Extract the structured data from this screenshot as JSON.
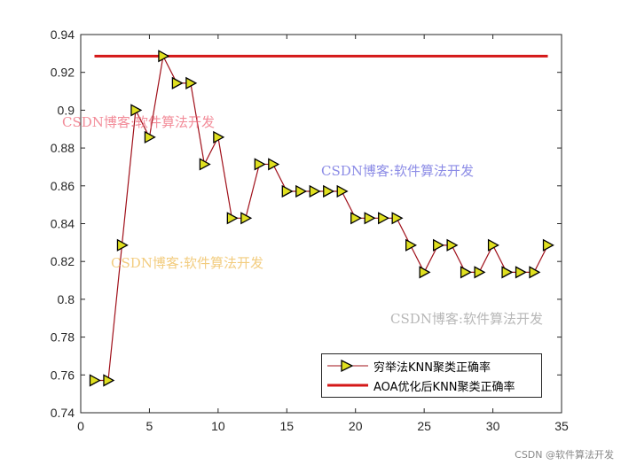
{
  "chart_data": {
    "type": "line",
    "x": [
      1,
      2,
      3,
      4,
      5,
      6,
      7,
      8,
      9,
      10,
      11,
      12,
      13,
      14,
      15,
      16,
      17,
      18,
      19,
      20,
      21,
      22,
      23,
      24,
      25,
      26,
      27,
      28,
      29,
      30,
      31,
      32,
      33,
      34
    ],
    "series": [
      {
        "name": "穷举法KNN聚类正确率",
        "color": "#a0101a",
        "marker": "right-triangle",
        "marker_color": "#e0e020",
        "values": [
          0.7571,
          0.7571,
          0.8286,
          0.9,
          0.8857,
          0.9286,
          0.9143,
          0.9143,
          0.8714,
          0.8857,
          0.8429,
          0.8429,
          0.8714,
          0.8714,
          0.8571,
          0.8571,
          0.8571,
          0.8571,
          0.8571,
          0.8429,
          0.8429,
          0.8429,
          0.8429,
          0.8286,
          0.8143,
          0.8286,
          0.8286,
          0.8143,
          0.8143,
          0.8286,
          0.8143,
          0.8143,
          0.8143,
          0.8286
        ]
      },
      {
        "name": "AOA优化后KNN聚类正确率",
        "color": "#d41818",
        "x_range": [
          1,
          34
        ],
        "value": 0.9286
      }
    ],
    "xlim": [
      0,
      35
    ],
    "ylim": [
      0.74,
      0.94
    ],
    "xticks": [
      "0",
      "5",
      "10",
      "15",
      "20",
      "25",
      "30",
      "35"
    ],
    "yticks": [
      "0.74",
      "0.76",
      "0.78",
      "0.8",
      "0.82",
      "0.84",
      "0.86",
      "0.88",
      "0.9",
      "0.92",
      "0.94"
    ],
    "title": "",
    "xlabel": "",
    "ylabel": "",
    "grid": false,
    "legend_position": "bottom-right"
  },
  "watermarks": [
    {
      "text": "CSDN博客:软件算法开发",
      "color": "#f07080"
    },
    {
      "text": "CSDN博客:软件算法开发",
      "color": "#7070e0"
    },
    {
      "text": "CSDN博客:软件算法开发",
      "color": "#f0c060"
    },
    {
      "text": "CSDN博客:软件算法开发",
      "color": "#b0b0b0"
    }
  ],
  "footer": "CSDN @软件算法开发"
}
